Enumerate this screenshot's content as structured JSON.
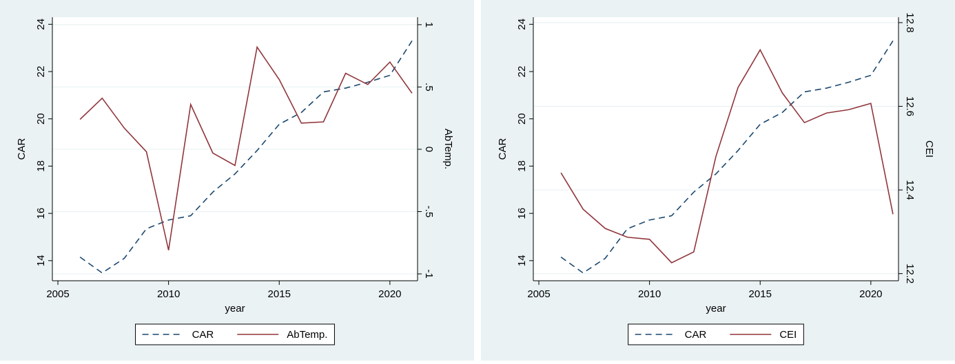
{
  "chart_data": [
    {
      "type": "line",
      "x_label": "year",
      "y_label": "CAR",
      "y2_label": "AbTemp.",
      "x": [
        2006,
        2007,
        2008,
        2009,
        2010,
        2011,
        2012,
        2013,
        2014,
        2015,
        2016,
        2017,
        2018,
        2019,
        2020,
        2021
      ],
      "xlim": [
        2004.75,
        2021.25
      ],
      "xticks": [
        2005,
        2010,
        2015,
        2020
      ],
      "ylim": [
        13.15,
        24.3
      ],
      "yticks": [
        14,
        16,
        18,
        20,
        22,
        24
      ],
      "y2lim": [
        -1.055,
        1.06
      ],
      "y2ticks": [
        -1,
        {
          "value": -0.5,
          "label": "-.5"
        },
        0,
        {
          "value": 0.5,
          "label": ".5"
        },
        1
      ],
      "grid": "y2",
      "series": [
        {
          "name": "CAR",
          "color": "#1a476f",
          "dashed": true,
          "values": [
            14.15,
            13.48,
            14.1,
            15.35,
            15.72,
            15.9,
            16.9,
            17.67,
            18.66,
            19.77,
            20.27,
            21.14,
            21.3,
            21.55,
            21.84,
            23.3
          ]
        },
        {
          "name": "AbTemp.",
          "color": "#90353b",
          "dashed": false,
          "axis": "y2",
          "values": [
            0.24,
            0.41,
            0.17,
            -0.02,
            -0.81,
            0.36,
            -0.03,
            -0.13,
            0.82,
            0.56,
            0.21,
            0.22,
            0.61,
            0.52,
            0.7,
            0.45
          ]
        }
      ]
    },
    {
      "type": "line",
      "x_label": "year",
      "y_label": "CAR",
      "y2_label": "CEI",
      "x": [
        2006,
        2007,
        2008,
        2009,
        2010,
        2011,
        2012,
        2013,
        2014,
        2015,
        2016,
        2017,
        2018,
        2019,
        2020,
        2021
      ],
      "xlim": [
        2004.75,
        2021.25
      ],
      "xticks": [
        2005,
        2010,
        2015,
        2020
      ],
      "ylim": [
        13.15,
        24.3
      ],
      "yticks": [
        14,
        16,
        18,
        20,
        22,
        24
      ],
      "y2lim": [
        12.183,
        12.813
      ],
      "y2ticks": [
        12.2,
        12.4,
        12.6,
        12.8
      ],
      "grid": "y2",
      "series": [
        {
          "name": "CAR",
          "color": "#1a476f",
          "dashed": true,
          "values": [
            14.15,
            13.48,
            14.1,
            15.35,
            15.72,
            15.9,
            16.9,
            17.67,
            18.66,
            19.77,
            20.27,
            21.14,
            21.3,
            21.55,
            21.84,
            23.3
          ]
        },
        {
          "name": "CEI",
          "color": "#90353b",
          "dashed": false,
          "axis": "y2",
          "values": [
            12.441,
            12.354,
            12.308,
            12.287,
            12.282,
            12.226,
            12.252,
            12.48,
            12.645,
            12.735,
            12.632,
            12.561,
            12.584,
            12.592,
            12.607,
            12.342
          ]
        }
      ]
    }
  ]
}
